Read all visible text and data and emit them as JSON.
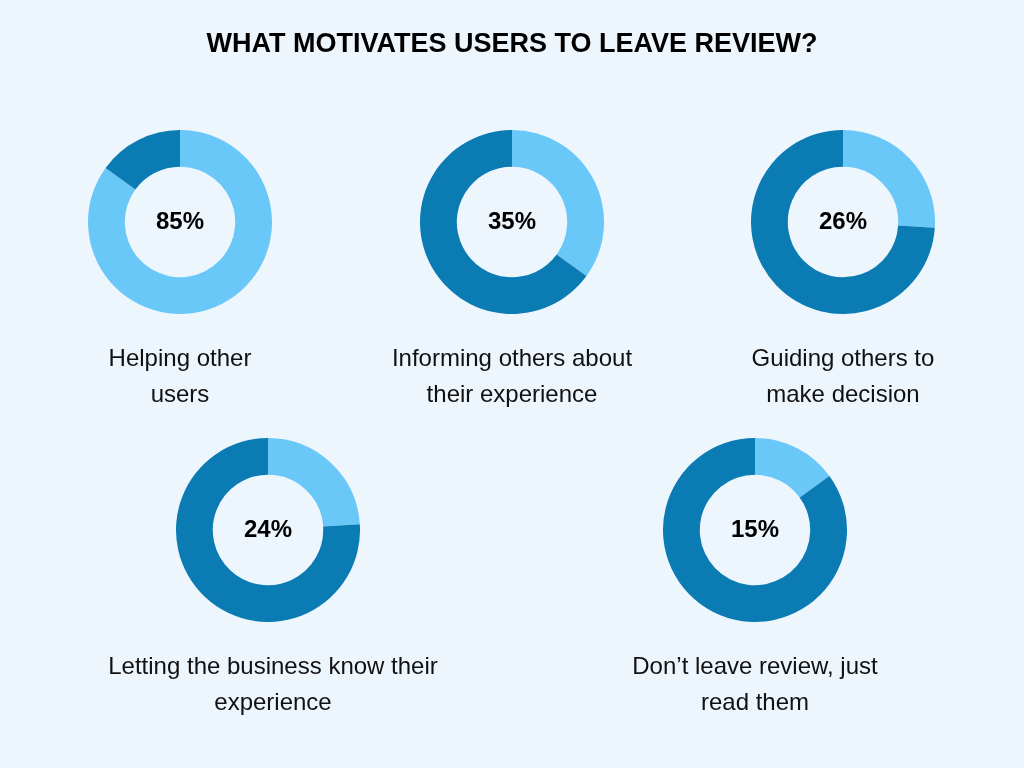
{
  "chart_data": [
    {
      "type": "other",
      "title": "WHAT MOTIVATES USERS TO LEAVE REVIEW?"
    },
    {
      "type": "donut",
      "title": "Helping other users",
      "categories": [
        null,
        null
      ],
      "values": [
        85,
        15
      ],
      "colors": [
        "#6ac8f9",
        "#0b7bb4"
      ],
      "value_labels": [
        "85%",
        null
      ]
    },
    {
      "type": "donut",
      "title": "Informing others about their experience",
      "categories": [
        null,
        null
      ],
      "values": [
        35,
        65
      ],
      "colors": [
        "#6ac8f9",
        "#0b7bb4"
      ],
      "value_labels": [
        "35%",
        null
      ]
    },
    {
      "type": "donut",
      "title": "Guiding others to make decision",
      "categories": [
        null,
        null
      ],
      "values": [
        26,
        74
      ],
      "colors": [
        "#6ac8f9",
        "#0b7bb4"
      ],
      "value_labels": [
        "26%",
        null
      ]
    },
    {
      "type": "donut",
      "title": "Letting the business know their experience",
      "categories": [
        null,
        null
      ],
      "values": [
        24,
        76
      ],
      "colors": [
        "#6ac8f9",
        "#0b7bb4"
      ],
      "value_labels": [
        "24%",
        null
      ]
    },
    {
      "type": "donut",
      "title": "Don’t leave review, just read them",
      "categories": [
        null,
        null
      ],
      "values": [
        15,
        85
      ],
      "colors": [
        "#6ac8f9",
        "#0b7bb4"
      ],
      "value_labels": [
        "15%",
        null
      ]
    }
  ]
}
